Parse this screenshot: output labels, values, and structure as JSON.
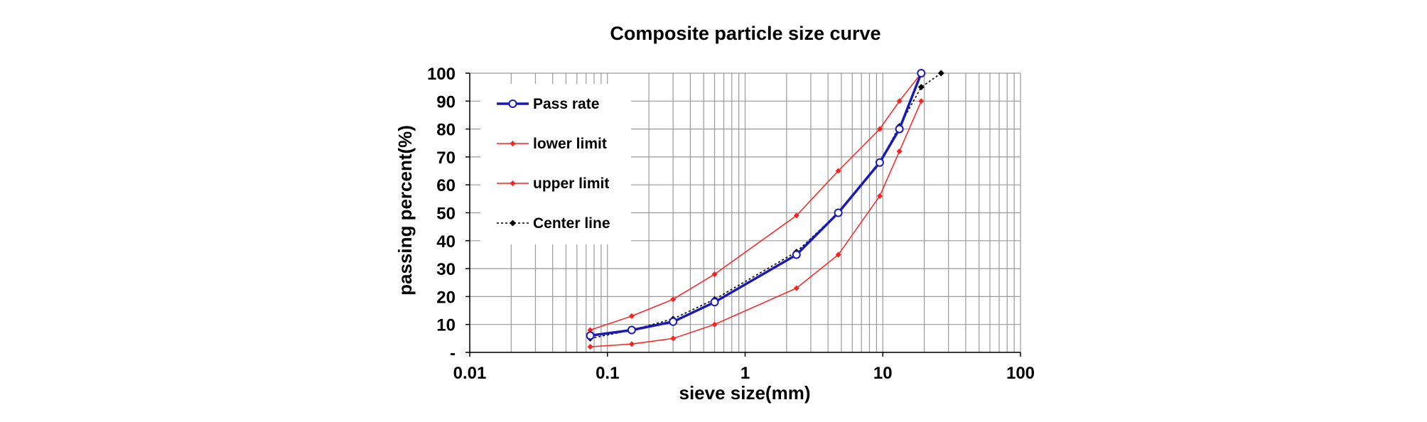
{
  "chart_data": {
    "type": "line",
    "title": "Composite particle size curve",
    "xlabel": "sieve size(mm)",
    "ylabel": "passing percent(%)",
    "x_scale": "log",
    "xlim": [
      0.01,
      100
    ],
    "ylim": [
      0,
      100
    ],
    "grid": true,
    "legend_position": "top-left",
    "x_tick_labels": [
      "0.01",
      "0.1",
      "1",
      "10",
      "100"
    ],
    "y_tick_labels": [
      "-",
      "10",
      "20",
      "30",
      "40",
      "50",
      "60",
      "70",
      "80",
      "90",
      "100"
    ],
    "series": [
      {
        "name": "Pass rate",
        "color": "#1a1ab8",
        "style": "solid-thick-hollow-circle",
        "x": [
          0.075,
          0.15,
          0.3,
          0.6,
          2.36,
          4.75,
          9.5,
          13.2,
          19
        ],
        "values": [
          6,
          8,
          11,
          18,
          35,
          50,
          68,
          80,
          100
        ]
      },
      {
        "name": "lower limit",
        "color": "#ff2020",
        "style": "solid-diamond",
        "x": [
          0.075,
          0.15,
          0.3,
          0.6,
          2.36,
          4.75,
          9.5,
          13.2,
          19
        ],
        "values": [
          2,
          3,
          5,
          10,
          23,
          35,
          56,
          72,
          90
        ]
      },
      {
        "name": "upper limit",
        "color": "#ff2020",
        "style": "solid-diamond",
        "x": [
          0.075,
          0.15,
          0.3,
          0.6,
          2.36,
          4.75,
          9.5,
          13.2,
          19
        ],
        "values": [
          8,
          13,
          19,
          28,
          49,
          65,
          80,
          90,
          100
        ]
      },
      {
        "name": "Center line",
        "color": "#000000",
        "style": "dotted-diamond",
        "x": [
          0.075,
          0.15,
          0.3,
          0.6,
          2.36,
          4.75,
          9.5,
          13.2,
          19,
          26.5
        ],
        "values": [
          5,
          8,
          12,
          19,
          36,
          50,
          68,
          81,
          95,
          100
        ]
      }
    ]
  }
}
